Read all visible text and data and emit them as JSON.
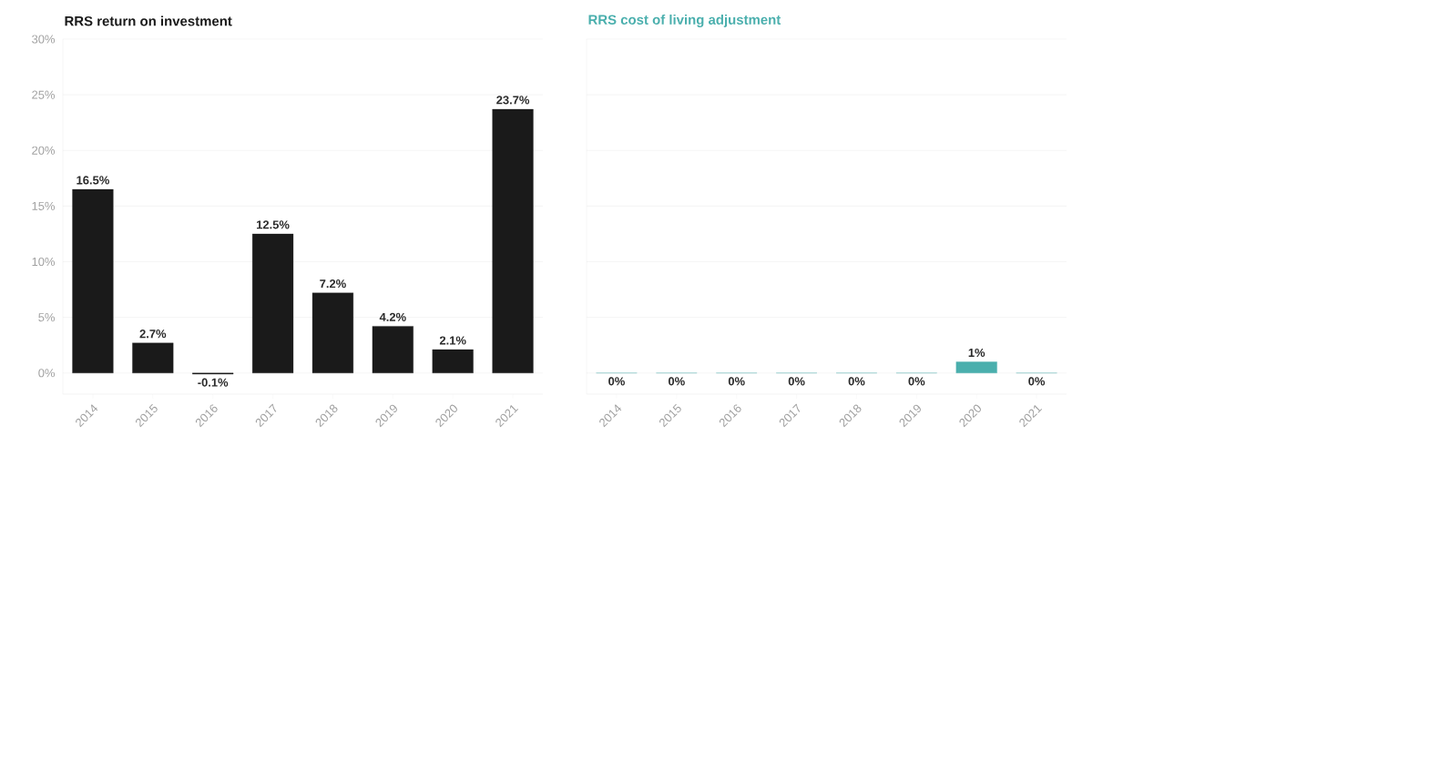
{
  "chart_data": [
    {
      "type": "bar",
      "title": "RRS return on investment",
      "categories": [
        "2014",
        "2015",
        "2016",
        "2017",
        "2018",
        "2019",
        "2020",
        "2021"
      ],
      "values": [
        16.5,
        2.7,
        -0.1,
        12.5,
        7.2,
        4.2,
        2.1,
        23.7
      ],
      "value_labels": [
        "16.5%",
        "2.7%",
        "-0.1%",
        "12.5%",
        "7.2%",
        "4.2%",
        "2.1%",
        "23.7%"
      ],
      "color": "#1a1a1a",
      "ylim": [
        -1.9,
        30
      ],
      "yticks": [
        {
          "value": 0,
          "label": "0%"
        },
        {
          "value": 5,
          "label": "5%"
        },
        {
          "value": 10,
          "label": "10%"
        },
        {
          "value": 15,
          "label": "15%"
        },
        {
          "value": 20,
          "label": "20%"
        },
        {
          "value": 25,
          "label": "25%"
        },
        {
          "value": 30,
          "label": "30%"
        }
      ],
      "grid": "y"
    },
    {
      "type": "bar",
      "title": "RRS cost of living adjustment",
      "categories": [
        "2014",
        "2015",
        "2016",
        "2017",
        "2018",
        "2019",
        "2020",
        "2021"
      ],
      "values": [
        0,
        0,
        0,
        0,
        0,
        0,
        1,
        0
      ],
      "value_labels": [
        "0%",
        "0%",
        "0%",
        "0%",
        "0%",
        "0%",
        "1%",
        "0%"
      ],
      "color": "#4aafad",
      "ylim": [
        -1.9,
        30
      ],
      "yticks": [
        0,
        5,
        10,
        15,
        20,
        25,
        30
      ],
      "grid": "y",
      "tick_labels": "x"
    }
  ]
}
